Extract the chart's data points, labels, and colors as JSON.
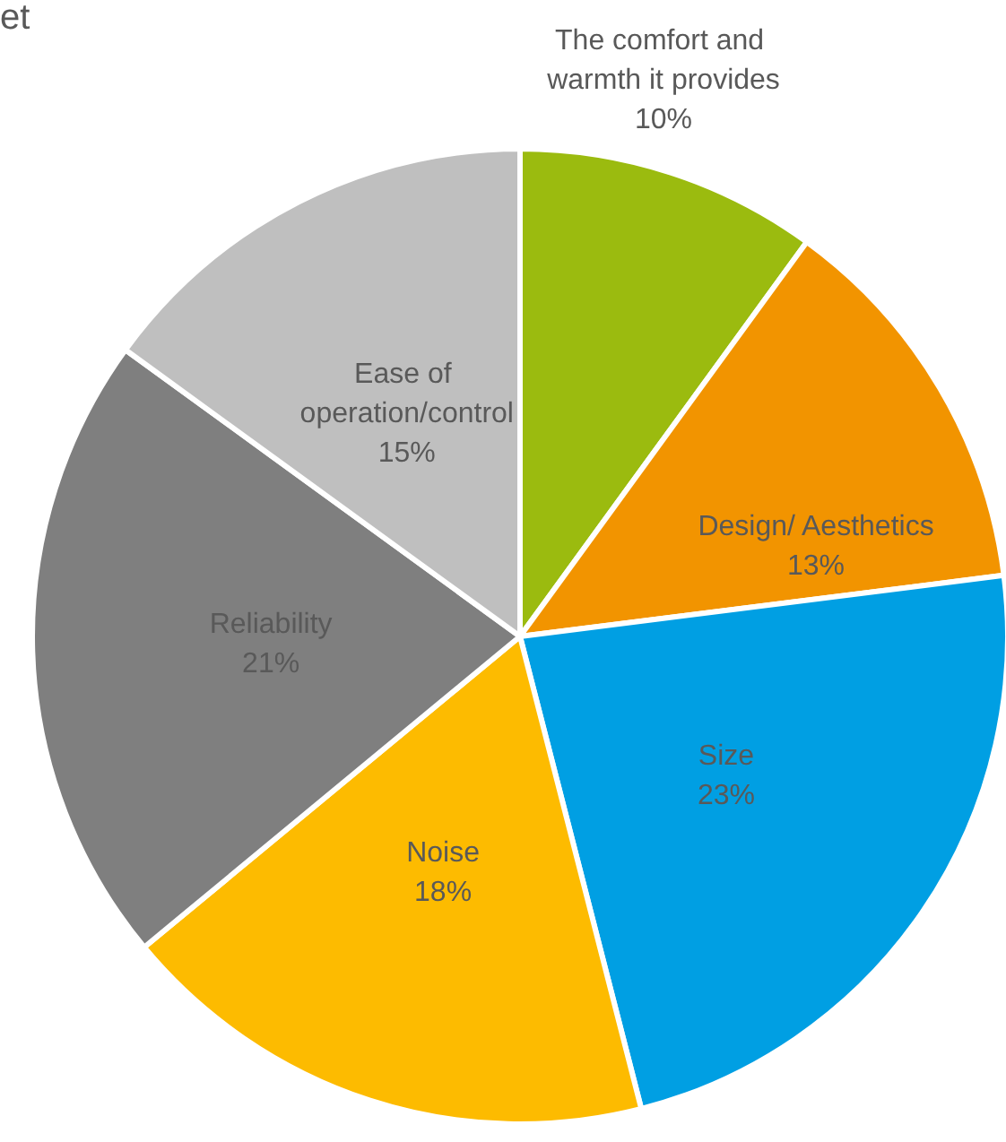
{
  "chart_data": {
    "type": "pie",
    "annotations": [
      "et"
    ],
    "categories": [
      "The comfort and warmth it provides",
      "Design/ Aesthetics",
      "Size",
      "Noise",
      "Reliability",
      "Ease of operation/control"
    ],
    "values": [
      10,
      13,
      23,
      18,
      21,
      15
    ],
    "value_labels": [
      "10%",
      "13%",
      "23%",
      "18%",
      "21%",
      "15%"
    ],
    "colors": [
      "#9bbb0f",
      "#f29400",
      "#009fe3",
      "#fdbb00",
      "#7f7f7f",
      "#bfbfbf"
    ],
    "legend": false
  }
}
